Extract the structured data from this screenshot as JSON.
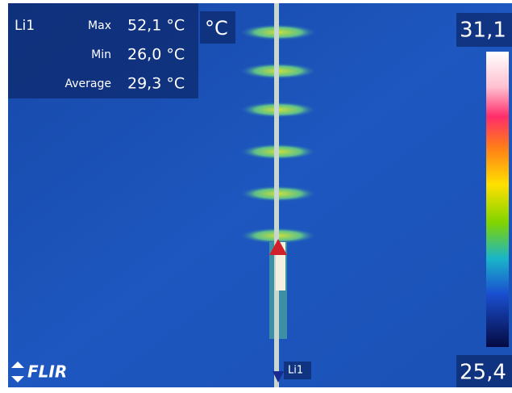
{
  "measurement": {
    "label": "Li1",
    "rows": [
      {
        "name": "Max",
        "value": "52,1 °C"
      },
      {
        "name": "Min",
        "value": "26,0 °C"
      },
      {
        "name": "Average",
        "value": "29,3 °C"
      }
    ]
  },
  "unit": "°C",
  "scale": {
    "top": "31,1",
    "bottom": "25,4"
  },
  "logo": "FLIR",
  "line_label": "Li1"
}
